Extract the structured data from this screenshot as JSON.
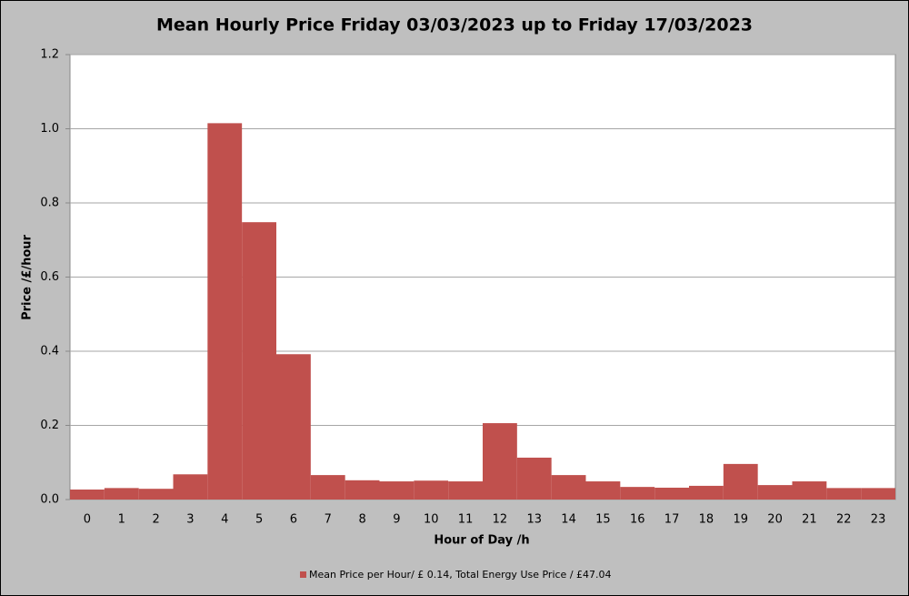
{
  "chart_data": {
    "type": "bar",
    "title": "Mean Hourly Price Friday 03/03/2023 up to Friday 17/03/2023",
    "x_label": "Hour of Day /h",
    "y_label": "Price /£/hour",
    "categories": [
      "0",
      "1",
      "2",
      "3",
      "4",
      "5",
      "6",
      "7",
      "8",
      "9",
      "10",
      "11",
      "12",
      "13",
      "14",
      "15",
      "16",
      "17",
      "18",
      "19",
      "20",
      "21",
      "22",
      "23"
    ],
    "series": [
      {
        "name": "Mean Price per Hour/ £ 0.14, Total Energy Use Price / £47.04",
        "color": "#c0504d",
        "values": [
          0.027,
          0.031,
          0.029,
          0.068,
          1.015,
          0.748,
          0.392,
          0.066,
          0.052,
          0.049,
          0.051,
          0.049,
          0.206,
          0.113,
          0.066,
          0.049,
          0.034,
          0.032,
          0.037,
          0.096,
          0.039,
          0.049,
          0.031,
          0.031
        ]
      }
    ],
    "ylim": [
      0,
      1.2
    ],
    "yticks": [
      {
        "value": 0,
        "label": "0.0"
      },
      0.2,
      0.4,
      0.6,
      0.8,
      {
        "value": 1,
        "label": "1.0"
      },
      1.2
    ],
    "grid": true,
    "legend": "bottom"
  }
}
